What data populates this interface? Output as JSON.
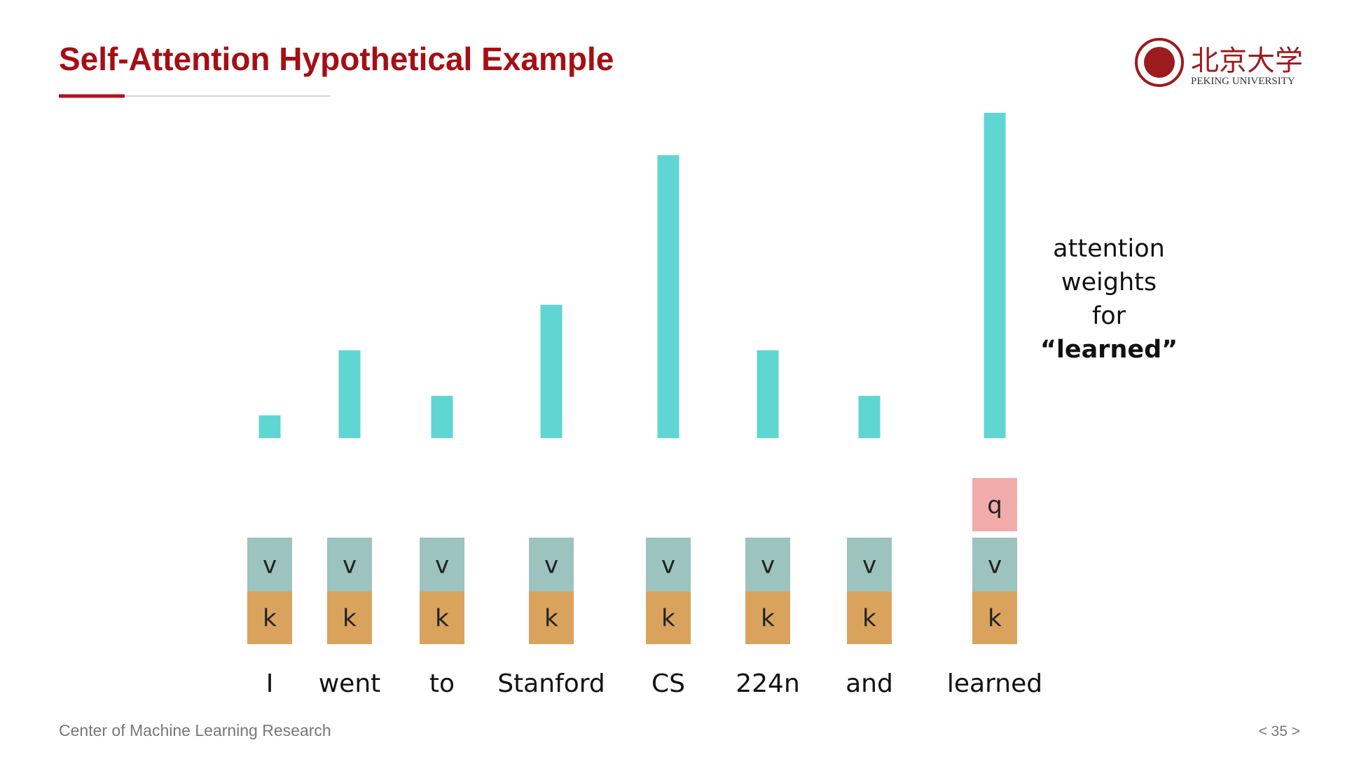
{
  "title": "Self-Attention Hypothetical Example",
  "logo": {
    "name": "北京大学",
    "english": "PEKING UNIVERSITY"
  },
  "chart_data": {
    "type": "bar",
    "categories": [
      "I",
      "went",
      "to",
      "Stanford",
      "CS",
      "224n",
      "and",
      "learned"
    ],
    "values": [
      0.07,
      0.27,
      0.13,
      0.41,
      0.87,
      0.27,
      0.13,
      1.0
    ],
    "color": "#5fd6d1",
    "ylim": [
      0,
      1
    ],
    "value_box": {
      "label": "v",
      "color": "#9cc3bd"
    },
    "key_box": {
      "label": "k",
      "color": "#d9a35e"
    },
    "query_box": {
      "label": "q",
      "color": "#f2abab",
      "category_index": 7
    },
    "annotation": [
      "attention",
      "weights",
      "for",
      "“learned”"
    ]
  },
  "footer": "Center of Machine Learning Research",
  "page_number": "< 35 >"
}
